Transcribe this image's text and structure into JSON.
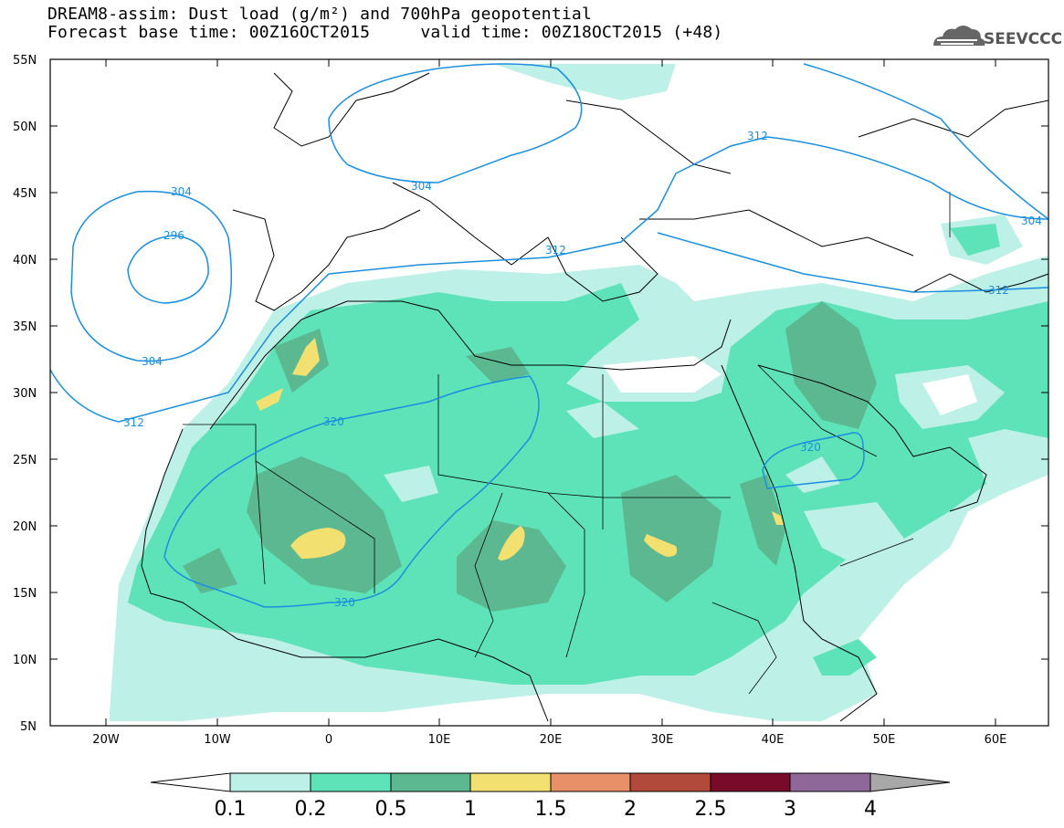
{
  "header": {
    "title_line1": "DREAM8-assim: Dust load (g/m²) and 700hPa geopotential",
    "title_line2": "Forecast base time: 00Z16OCT2015     valid time: 00Z18OCT2015 (+48)"
  },
  "logo": {
    "text": "SEEVCCC",
    "icon": "cloud-icon"
  },
  "map": {
    "lat_labels": [
      "55N",
      "50N",
      "45N",
      "40N",
      "35N",
      "30N",
      "25N",
      "20N",
      "15N",
      "10N",
      "5N"
    ],
    "lon_labels": [
      "20W",
      "10W",
      "0",
      "10E",
      "20E",
      "30E",
      "40E",
      "50E",
      "60E"
    ],
    "contour_labels": [
      "304",
      "296",
      "304",
      "312",
      "304",
      "312",
      "312",
      "320",
      "320",
      "320",
      "304",
      "312"
    ]
  },
  "colorbar": {
    "labels": [
      "0.1",
      "0.2",
      "0.5",
      "1",
      "1.5",
      "2",
      "2.5",
      "3",
      "4"
    ],
    "colors": [
      "#ffffff",
      "#bdf0e6",
      "#5ee2b8",
      "#5cb890",
      "#f2e070",
      "#e89068",
      "#b24a3c",
      "#7a0a2a",
      "#8e6898",
      "#a8a8a8"
    ]
  },
  "colors": {
    "contour": "#1a8fe0",
    "level1": "#bdf0e6",
    "level2": "#5ee2b8",
    "level3": "#5cb890",
    "level4": "#f2e070"
  }
}
